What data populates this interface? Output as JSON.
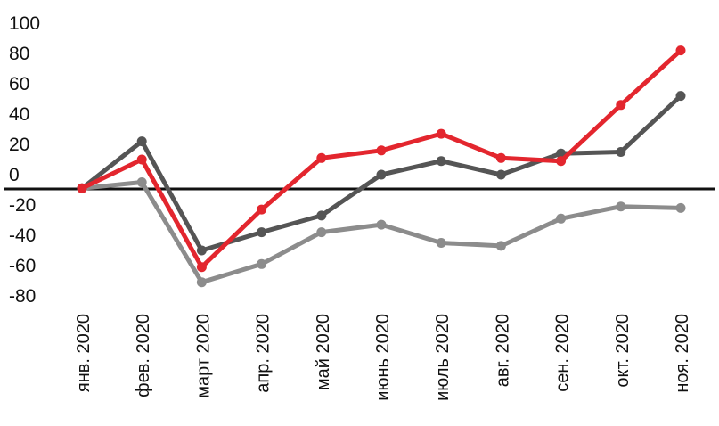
{
  "chart_data": {
    "type": "line",
    "x": [
      "янв. 2020",
      "фев. 2020",
      "март 2020",
      "апр. 2020",
      "май 2020",
      "июнь 2020",
      "июль 2020",
      "авг. 2020",
      "сен. 2020",
      "окт. 2020",
      "ноя. 2020"
    ],
    "yticks": [
      "100",
      "80",
      "60",
      "40",
      "20",
      "0",
      "-20",
      "-40",
      "-60",
      "-80"
    ],
    "ylim": [
      -80,
      100
    ],
    "grid": false,
    "legend": "none",
    "series": [
      {
        "color": "#8c8c8c",
        "values": [
          -9,
          -5,
          -71,
          -59,
          -38,
          -33,
          -45,
          -47,
          -29,
          -21,
          -22
        ]
      },
      {
        "color": "#555555",
        "values": [
          -9,
          22,
          -50,
          -38,
          -27,
          0,
          9,
          0,
          14,
          15,
          52
        ]
      },
      {
        "color": "#e3262e",
        "values": [
          -9,
          10,
          -61,
          -23,
          11,
          16,
          27,
          11,
          9,
          46,
          82
        ]
      }
    ],
    "zero_line_color": "#111111"
  }
}
